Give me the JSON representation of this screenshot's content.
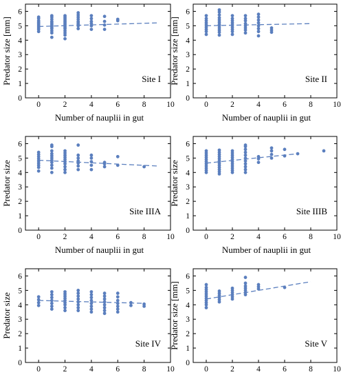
{
  "figure": {
    "panel_order": [
      "Site I",
      "Site II",
      "Site IIIA",
      "Site IIIB",
      "Site IV",
      "Site V"
    ]
  },
  "chart_data": [
    {
      "type": "scatter",
      "site_label": "Site I",
      "xlabel": "Number of nauplii in gut",
      "ylabel": "Predator size   [mm]",
      "xlim": [
        -1,
        10
      ],
      "ylim": [
        0,
        6.5
      ],
      "xticks": [
        0,
        2,
        4,
        6,
        8,
        10
      ],
      "yticks": [
        0,
        1,
        2,
        3,
        4,
        5,
        6
      ],
      "grid": false,
      "marker_color": "#5b7fbe",
      "trend": {
        "style": "dashed",
        "x": [
          0,
          9
        ],
        "y": [
          4.95,
          5.2
        ]
      },
      "columns": [
        {
          "x": 0,
          "y": [
            4.6,
            4.75,
            4.85,
            4.95,
            5.05,
            5.15,
            5.25,
            5.35,
            5.5,
            5.6
          ]
        },
        {
          "x": 1,
          "y": [
            4.2,
            4.5,
            4.65,
            4.8,
            4.9,
            5.0,
            5.1,
            5.2,
            5.3,
            5.45,
            5.6,
            5.7
          ]
        },
        {
          "x": 2,
          "y": [
            4.1,
            4.35,
            4.5,
            4.65,
            4.8,
            4.9,
            5.0,
            5.1,
            5.2,
            5.3,
            5.4,
            5.5,
            5.6,
            5.7
          ]
        },
        {
          "x": 3,
          "y": [
            4.8,
            5.0,
            5.1,
            5.2,
            5.3,
            5.45,
            5.6,
            5.75,
            5.9
          ]
        },
        {
          "x": 4,
          "y": [
            4.75,
            5.0,
            5.15,
            5.3,
            5.5,
            5.7
          ]
        },
        {
          "x": 5,
          "y": [
            4.75,
            5.05,
            5.3,
            5.65
          ]
        },
        {
          "x": 6,
          "y": [
            5.35,
            5.45
          ]
        }
      ]
    },
    {
      "type": "scatter",
      "site_label": "Site II",
      "xlabel": "Number of nauplii in gut",
      "ylabel": "Predator size   [mm]",
      "xlim": [
        -1,
        10
      ],
      "ylim": [
        0,
        6.5
      ],
      "xticks": [
        0,
        2,
        4,
        6,
        8,
        10
      ],
      "yticks": [
        0,
        1,
        2,
        3,
        4,
        5,
        6
      ],
      "grid": false,
      "marker_color": "#5b7fbe",
      "trend": {
        "style": "dashed",
        "x": [
          0,
          8
        ],
        "y": [
          5.0,
          5.15
        ]
      },
      "columns": [
        {
          "x": 0,
          "y": [
            4.4,
            4.6,
            4.75,
            4.9,
            5.05,
            5.2,
            5.35,
            5.5,
            5.7
          ]
        },
        {
          "x": 1,
          "y": [
            4.35,
            4.55,
            4.7,
            4.85,
            5.0,
            5.1,
            5.25,
            5.4,
            5.55,
            5.75,
            5.95,
            6.1
          ]
        },
        {
          "x": 2,
          "y": [
            4.4,
            4.6,
            4.75,
            4.9,
            5.05,
            5.2,
            5.35,
            5.5,
            5.7
          ]
        },
        {
          "x": 3,
          "y": [
            4.5,
            4.7,
            4.85,
            5.0,
            5.15,
            5.35,
            5.5,
            5.7
          ]
        },
        {
          "x": 4,
          "y": [
            4.3,
            4.6,
            4.8,
            5.0,
            5.2,
            5.4,
            5.6,
            5.8
          ]
        },
        {
          "x": 5,
          "y": [
            4.55,
            4.7,
            4.85
          ]
        }
      ]
    },
    {
      "type": "scatter",
      "site_label": "Site IIIA",
      "xlabel": "Number of nauplii in gut",
      "ylabel": "Predator size",
      "xlim": [
        -1,
        10
      ],
      "ylim": [
        0,
        6.5
      ],
      "xticks": [
        0,
        2,
        4,
        6,
        8,
        10
      ],
      "yticks": [
        0,
        1,
        2,
        3,
        4,
        5,
        6
      ],
      "grid": false,
      "marker_color": "#5b7fbe",
      "trend": {
        "style": "dashed",
        "x": [
          0,
          9
        ],
        "y": [
          4.85,
          4.45
        ]
      },
      "columns": [
        {
          "x": 0,
          "y": [
            4.1,
            4.35,
            4.5,
            4.65,
            4.8,
            4.95,
            5.1,
            5.25,
            5.4
          ]
        },
        {
          "x": 1,
          "y": [
            4.0,
            4.3,
            4.5,
            4.7,
            4.85,
            5.0,
            5.15,
            5.3,
            5.5,
            5.8,
            5.9
          ]
        },
        {
          "x": 2,
          "y": [
            4.0,
            4.2,
            4.4,
            4.6,
            4.75,
            4.9,
            5.05,
            5.2,
            5.35,
            5.5
          ]
        },
        {
          "x": 3,
          "y": [
            4.2,
            4.45,
            4.65,
            4.8,
            5.0,
            5.2,
            5.9
          ]
        },
        {
          "x": 4,
          "y": [
            4.2,
            4.5,
            4.75,
            5.0,
            5.2
          ]
        },
        {
          "x": 5,
          "y": [
            4.4,
            4.6,
            4.7
          ]
        },
        {
          "x": 6,
          "y": [
            4.5,
            5.1
          ]
        },
        {
          "x": 8,
          "y": [
            4.4
          ]
        }
      ]
    },
    {
      "type": "scatter",
      "site_label": "Site IIIB",
      "xlabel": "Number of nauplii in gut",
      "ylabel": "Predator size",
      "xlim": [
        -1,
        10
      ],
      "ylim": [
        0,
        6.5
      ],
      "xticks": [
        0,
        2,
        4,
        6,
        8,
        10
      ],
      "yticks": [
        0,
        1,
        2,
        3,
        4,
        5,
        6
      ],
      "grid": false,
      "marker_color": "#5b7fbe",
      "trend": {
        "style": "dashed",
        "x": [
          0,
          7
        ],
        "y": [
          4.65,
          5.3
        ]
      },
      "columns": [
        {
          "x": 0,
          "y": [
            4.0,
            4.15,
            4.3,
            4.45,
            4.6,
            4.75,
            4.9,
            5.05,
            5.2,
            5.35,
            5.5
          ]
        },
        {
          "x": 1,
          "y": [
            3.9,
            4.05,
            4.2,
            4.35,
            4.5,
            4.65,
            4.8,
            4.95,
            5.1,
            5.25,
            5.4,
            5.55
          ]
        },
        {
          "x": 2,
          "y": [
            4.0,
            4.15,
            4.3,
            4.45,
            4.6,
            4.75,
            4.9,
            5.05,
            5.2,
            5.35,
            5.5
          ]
        },
        {
          "x": 3,
          "y": [
            4.0,
            4.2,
            4.4,
            4.6,
            4.8,
            5.0,
            5.2,
            5.4,
            5.6,
            5.8,
            5.9
          ]
        },
        {
          "x": 4,
          "y": [
            4.7,
            4.95,
            5.1
          ]
        },
        {
          "x": 5,
          "y": [
            5.0,
            5.25,
            5.5,
            5.7
          ]
        },
        {
          "x": 6,
          "y": [
            5.15,
            5.6
          ]
        },
        {
          "x": 7,
          "y": [
            5.3
          ]
        },
        {
          "x": 9,
          "y": [
            5.5
          ]
        }
      ]
    },
    {
      "type": "scatter",
      "site_label": "Site IV",
      "xlabel": "Number of nauplii in gut",
      "ylabel": "Predator size",
      "xlim": [
        -1,
        10
      ],
      "ylim": [
        0,
        6.5
      ],
      "xticks": [
        0,
        2,
        4,
        6,
        8,
        10
      ],
      "yticks": [
        0,
        1,
        2,
        3,
        4,
        5,
        6
      ],
      "grid": false,
      "marker_color": "#5b7fbe",
      "trend": {
        "style": "dashed",
        "x": [
          0,
          8
        ],
        "y": [
          4.3,
          4.1
        ]
      },
      "columns": [
        {
          "x": 0,
          "y": [
            3.95,
            4.15,
            4.35,
            4.55
          ]
        },
        {
          "x": 1,
          "y": [
            3.7,
            3.9,
            4.1,
            4.3,
            4.5,
            4.7,
            4.9
          ]
        },
        {
          "x": 2,
          "y": [
            3.6,
            3.8,
            4.0,
            4.15,
            4.3,
            4.45,
            4.6,
            4.75,
            4.9
          ]
        },
        {
          "x": 3,
          "y": [
            3.6,
            3.8,
            4.0,
            4.2,
            4.4,
            4.6,
            4.8,
            5.0
          ]
        },
        {
          "x": 4,
          "y": [
            3.5,
            3.7,
            3.9,
            4.1,
            4.3,
            4.5,
            4.7,
            4.9
          ]
        },
        {
          "x": 5,
          "y": [
            3.4,
            3.6,
            3.8,
            4.0,
            4.2,
            4.4,
            4.6,
            4.8
          ]
        },
        {
          "x": 6,
          "y": [
            3.5,
            3.7,
            3.9,
            4.1,
            4.3,
            4.55,
            4.8
          ]
        },
        {
          "x": 7,
          "y": [
            3.95,
            4.15
          ]
        },
        {
          "x": 8,
          "y": [
            3.9,
            4.05
          ]
        }
      ]
    },
    {
      "type": "scatter",
      "site_label": "Site V",
      "xlabel": "Number of nauplii in gut",
      "ylabel": "Predator size   [mm]",
      "xlim": [
        -1,
        10
      ],
      "ylim": [
        0,
        6.5
      ],
      "xticks": [
        0,
        2,
        4,
        6,
        8,
        10
      ],
      "yticks": [
        0,
        1,
        2,
        3,
        4,
        5,
        6
      ],
      "grid": false,
      "marker_color": "#5b7fbe",
      "trend": {
        "style": "dashed",
        "x": [
          0,
          8
        ],
        "y": [
          4.4,
          5.6
        ]
      },
      "columns": [
        {
          "x": 0,
          "y": [
            3.8,
            4.0,
            4.15,
            4.3,
            4.45,
            4.6,
            4.75,
            4.9,
            5.05,
            5.2,
            5.4
          ]
        },
        {
          "x": 1,
          "y": [
            4.2,
            4.35,
            4.5,
            4.65,
            4.8,
            4.95
          ]
        },
        {
          "x": 2,
          "y": [
            4.4,
            4.55,
            4.7,
            4.85,
            5.0,
            5.15
          ]
        },
        {
          "x": 3,
          "y": [
            4.7,
            4.85,
            5.0,
            5.15,
            5.3,
            5.5,
            5.9
          ]
        },
        {
          "x": 4,
          "y": [
            5.1,
            5.25,
            5.4
          ]
        },
        {
          "x": 6,
          "y": [
            5.2
          ]
        }
      ]
    }
  ]
}
